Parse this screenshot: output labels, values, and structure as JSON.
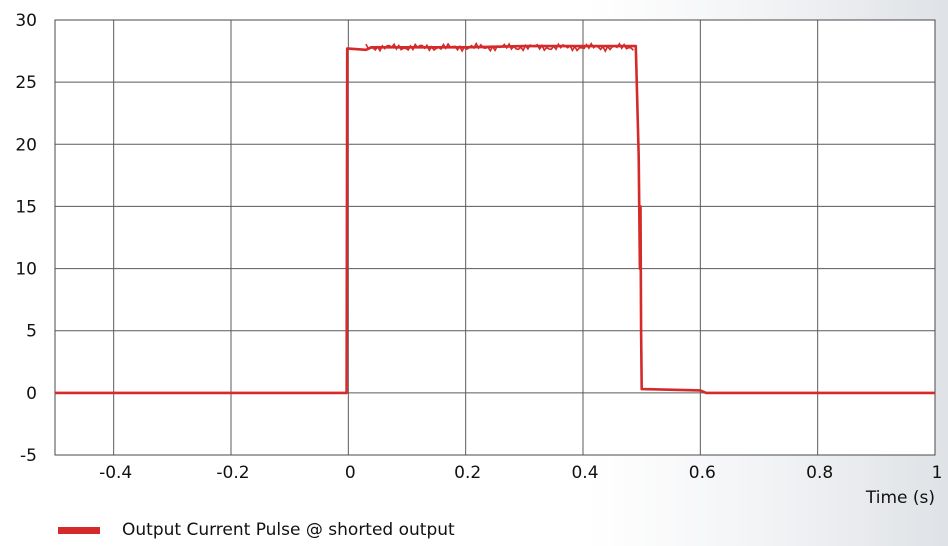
{
  "chart_data": {
    "type": "line",
    "title": "",
    "xlabel": "Time  (s)",
    "ylabel": "",
    "xlim": [
      -0.5,
      1.0
    ],
    "ylim": [
      -5,
      30
    ],
    "xticks": [
      -0.4,
      -0.2,
      0,
      0.2,
      0.4,
      0.6,
      0.8,
      1
    ],
    "xtick_labels": [
      "-0.4",
      "-0.2",
      "0",
      "0.2",
      "0.4",
      "0.6",
      "0.8",
      "1"
    ],
    "yticks": [
      -5,
      0,
      5,
      10,
      15,
      20,
      25,
      30
    ],
    "ytick_labels": [
      "-5",
      "0",
      "5",
      "10",
      "15",
      "20",
      "25",
      "30"
    ],
    "grid": true,
    "legend_position": "bottom-left",
    "series": [
      {
        "name": "Output Current Pulse @ shorted output",
        "color": "#d42a2a",
        "x": [
          -0.5,
          -0.003,
          -0.002,
          0.0,
          0.03,
          0.04,
          0.1,
          0.2,
          0.3,
          0.4,
          0.49,
          0.495,
          0.497,
          0.498,
          0.499,
          0.5,
          0.502,
          0.6,
          0.61,
          1.0
        ],
        "y": [
          0,
          0,
          27.7,
          27.7,
          27.6,
          27.8,
          27.8,
          27.8,
          27.9,
          27.9,
          27.9,
          19.0,
          10.0,
          15.0,
          5.0,
          0.3,
          0.3,
          0.2,
          0.0,
          0.0
        ]
      }
    ]
  }
}
